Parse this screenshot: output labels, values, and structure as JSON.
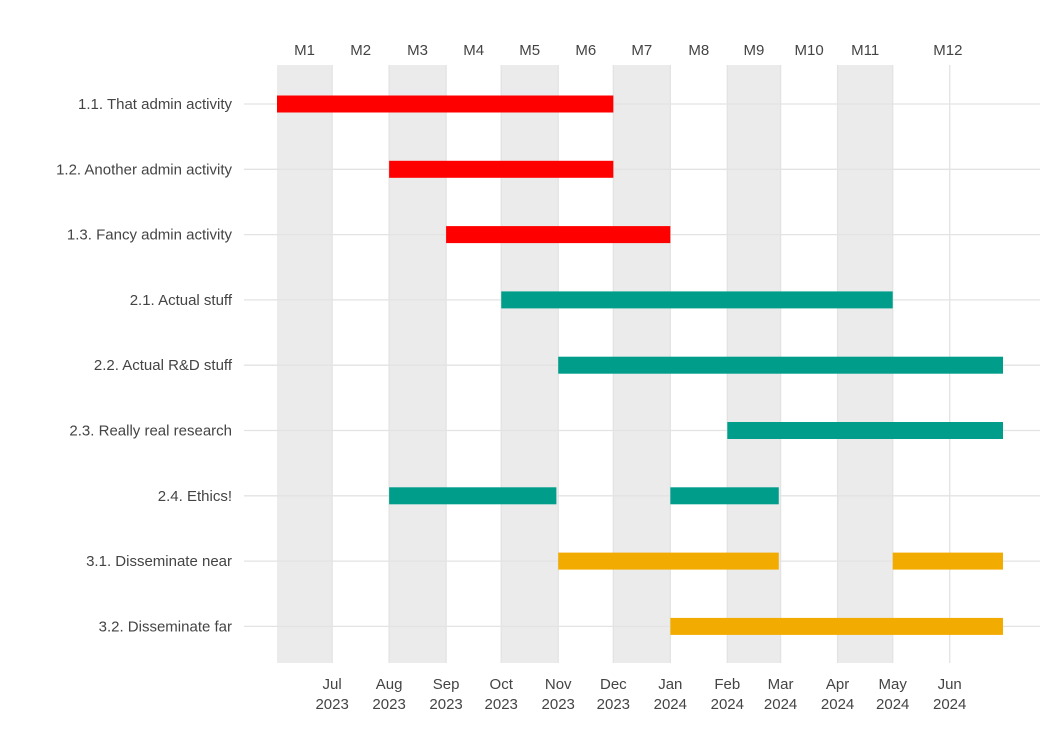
{
  "chart_data": {
    "type": "gantt",
    "title": "",
    "xlabel": "",
    "ylabel": "",
    "grid": true,
    "legend": "none",
    "x_range": [
      "2023-06-01",
      "2024-06-30"
    ],
    "project_months": {
      "labels": [
        "M1",
        "M2",
        "M3",
        "M4",
        "M5",
        "M6",
        "M7",
        "M8",
        "M9",
        "M10",
        "M11",
        "M12"
      ],
      "starts": [
        "2023-06-01",
        "2023-07-01",
        "2023-08-01",
        "2023-09-01",
        "2023-10-01",
        "2023-11-01",
        "2023-12-01",
        "2024-01-01",
        "2024-02-01",
        "2024-03-01",
        "2024-04-01",
        "2024-05-01"
      ],
      "shaded": [
        true,
        false,
        true,
        false,
        true,
        false,
        true,
        false,
        true,
        false,
        true,
        false
      ]
    },
    "date_ticks": [
      {
        "date": "2023-07-01",
        "month": "Jul",
        "year": "2023"
      },
      {
        "date": "2023-08-01",
        "month": "Aug",
        "year": "2023"
      },
      {
        "date": "2023-09-01",
        "month": "Sep",
        "year": "2023"
      },
      {
        "date": "2023-10-01",
        "month": "Oct",
        "year": "2023"
      },
      {
        "date": "2023-11-01",
        "month": "Nov",
        "year": "2023"
      },
      {
        "date": "2023-12-01",
        "month": "Dec",
        "year": "2023"
      },
      {
        "date": "2024-01-01",
        "month": "Jan",
        "year": "2024"
      },
      {
        "date": "2024-02-01",
        "month": "Feb",
        "year": "2024"
      },
      {
        "date": "2024-03-01",
        "month": "Mar",
        "year": "2024"
      },
      {
        "date": "2024-04-01",
        "month": "Apr",
        "year": "2024"
      },
      {
        "date": "2024-05-01",
        "month": "May",
        "year": "2024"
      },
      {
        "date": "2024-06-01",
        "month": "Jun",
        "year": "2024"
      }
    ],
    "work_package_colors": {
      "1": "#ff0000",
      "2": "#009e8a",
      "3": "#f2ab00"
    },
    "tasks": [
      {
        "label": "1.1. That admin activity",
        "wp": "1",
        "segments": [
          [
            "2023-06-01",
            "2023-12-01"
          ]
        ]
      },
      {
        "label": "1.2. Another admin activity",
        "wp": "1",
        "segments": [
          [
            "2023-08-01",
            "2023-12-01"
          ]
        ]
      },
      {
        "label": "1.3. Fancy admin activity",
        "wp": "1",
        "segments": [
          [
            "2023-09-01",
            "2024-01-01"
          ]
        ]
      },
      {
        "label": "2.1. Actual stuff",
        "wp": "2",
        "segments": [
          [
            "2023-10-01",
            "2024-05-01"
          ]
        ]
      },
      {
        "label": "2.2. Actual R&D stuff",
        "wp": "2",
        "segments": [
          [
            "2023-11-01",
            "2024-06-30"
          ]
        ]
      },
      {
        "label": "2.3. Really real research",
        "wp": "2",
        "segments": [
          [
            "2024-02-01",
            "2024-06-30"
          ]
        ]
      },
      {
        "label": "2.4. Ethics!",
        "wp": "2",
        "segments": [
          [
            "2023-08-01",
            "2023-10-31"
          ],
          [
            "2024-01-01",
            "2024-02-29"
          ]
        ]
      },
      {
        "label": "3.1. Disseminate near",
        "wp": "3",
        "segments": [
          [
            "2023-11-01",
            "2024-02-29"
          ],
          [
            "2024-05-01",
            "2024-06-30"
          ]
        ]
      },
      {
        "label": "3.2. Disseminate far",
        "wp": "3",
        "segments": [
          [
            "2024-01-01",
            "2024-06-30"
          ]
        ]
      }
    ]
  }
}
